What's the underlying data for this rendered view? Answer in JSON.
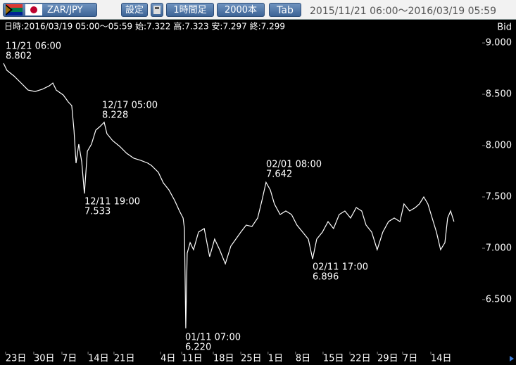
{
  "toolbar": {
    "pair": "ZAR/JPY",
    "settings": "設定",
    "timeframe": "1時間足",
    "count": "2000本",
    "tab": "Tab",
    "range": "2015/11/21 06:00〜2016/03/19 05:59"
  },
  "chart_data": {
    "type": "line",
    "info": "日時:2016/03/19 05:00〜05:59 始:7.322 高:7.323 安:7.297 終:7.299",
    "price_type": "Bid",
    "x": [
      0,
      15,
      46,
      77,
      108,
      139,
      170,
      201,
      217,
      232,
      263,
      285,
      300,
      310,
      319,
      331,
      344,
      356,
      369,
      387,
      406,
      424,
      443,
      455,
      480,
      511,
      542,
      573,
      604,
      635,
      650,
      681,
      703,
      728,
      753,
      774,
      790,
      796,
      802,
      808,
      821,
      836,
      858,
      883,
      907,
      929,
      951,
      976,
      1000,
      1022,
      1044,
      1068,
      1093,
      1118,
      1137,
      1155,
      1174,
      1192,
      1217,
      1242,
      1267,
      1291,
      1316,
      1341,
      1360,
      1378,
      1403,
      1428,
      1452,
      1477,
      1502,
      1527,
      1552,
      1576,
      1595,
      1620,
      1644,
      1669,
      1694,
      1719,
      1744,
      1762,
      1787,
      1812,
      1830,
      1849,
      1867,
      1886,
      1905,
      1923,
      1942,
      1954,
      1967,
      1982
    ],
    "series": [
      {
        "name": "ZAR/JPY",
        "color": "#ffffff",
        "values": [
          8.802,
          8.733,
          8.678,
          8.61,
          8.541,
          8.527,
          8.548,
          8.582,
          8.61,
          8.541,
          8.493,
          8.425,
          8.39,
          8.151,
          7.829,
          8.014,
          7.842,
          7.533,
          7.945,
          8.014,
          8.151,
          8.185,
          8.228,
          8.116,
          8.048,
          7.993,
          7.925,
          7.877,
          7.856,
          7.829,
          7.808,
          7.74,
          7.637,
          7.568,
          7.466,
          7.363,
          7.295,
          7.192,
          6.22,
          6.952,
          7.055,
          6.986,
          7.158,
          7.192,
          6.918,
          7.089,
          6.986,
          6.849,
          7.021,
          7.089,
          7.158,
          7.226,
          7.212,
          7.295,
          7.466,
          7.642,
          7.568,
          7.432,
          7.329,
          7.363,
          7.329,
          7.226,
          7.158,
          7.089,
          6.896,
          7.089,
          7.158,
          7.26,
          7.192,
          7.329,
          7.363,
          7.295,
          7.397,
          7.363,
          7.226,
          7.158,
          6.986,
          7.158,
          7.26,
          7.295,
          7.26,
          7.432,
          7.363,
          7.397,
          7.432,
          7.5,
          7.432,
          7.295,
          7.158,
          6.986,
          7.055,
          7.295,
          7.363,
          7.26
        ]
      }
    ],
    "annotations": [
      {
        "time": "11/21 06:00",
        "price": "8.802"
      },
      {
        "time": "12/17 05:00",
        "price": "8.228"
      },
      {
        "time": "12/11 19:00",
        "price": "7.533"
      },
      {
        "time": "01/11 07:00",
        "price": "6.220"
      },
      {
        "time": "02/01 08:00",
        "price": "7.642"
      },
      {
        "time": "02/11 17:00",
        "price": "6.896"
      }
    ],
    "xlim": [
      0,
      2100
    ],
    "xticks": [
      {
        "value": 9,
        "label": "23日"
      },
      {
        "value": 133,
        "label": "30日"
      },
      {
        "value": 257,
        "label": "7日"
      },
      {
        "value": 372,
        "label": "14日"
      },
      {
        "value": 486,
        "label": "21日"
      },
      {
        "value": 691,
        "label": "4日"
      },
      {
        "value": 784,
        "label": "11日"
      },
      {
        "value": 923,
        "label": "18日"
      },
      {
        "value": 1044,
        "label": "25日"
      },
      {
        "value": 1164,
        "label": "1日"
      },
      {
        "value": 1285,
        "label": "8日"
      },
      {
        "value": 1406,
        "label": "15日"
      },
      {
        "value": 1524,
        "label": "22日"
      },
      {
        "value": 1645,
        "label": "29日"
      },
      {
        "value": 1756,
        "label": "7日"
      },
      {
        "value": 1880,
        "label": "14日"
      }
    ],
    "ylim": [
      6.0,
      9.11
    ],
    "yticks": [
      {
        "value": 9,
        "label": "9.000"
      },
      {
        "value": 8.5,
        "label": "8.500"
      },
      {
        "value": 8,
        "label": "8.000"
      },
      {
        "value": 7.5,
        "label": "7.500"
      },
      {
        "value": 7,
        "label": "7.000"
      },
      {
        "value": 6.5,
        "label": "6.500"
      }
    ]
  }
}
